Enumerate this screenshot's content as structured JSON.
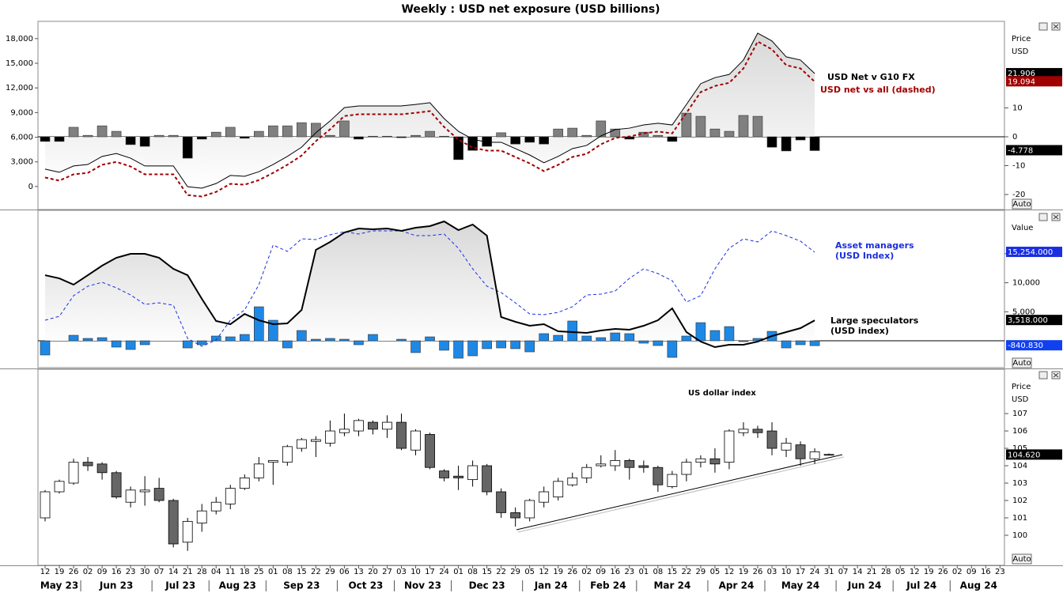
{
  "chart_data": [
    {
      "type": "combo",
      "title": "Weekly : USD net exposure (USD billions)",
      "axis_header": [
        "Price",
        "USD"
      ],
      "ylim": [
        -2800,
        20100
      ],
      "yticks": [
        0,
        {
          "value": 3000,
          "label": "3,000"
        },
        {
          "value": 6000,
          "label": "6,000"
        },
        {
          "value": 9000,
          "label": "9,000"
        },
        {
          "value": 12000,
          "label": "12,000"
        },
        {
          "value": 15000,
          "label": "15,000"
        },
        {
          "value": 18000,
          "label": "18,000"
        }
      ],
      "y2lim": [
        -25.2,
        40
      ],
      "y2ticks": [
        -20,
        -10,
        0,
        10
      ],
      "zero_line": true,
      "series": [
        {
          "type": "bar",
          "axis": "y2",
          "color": "#808080",
          "negative_color": "#000000",
          "tag_color": "#000000",
          "tag": -4.778,
          "values": [
            -1.6,
            -1.6,
            3.3,
            0.5,
            3.8,
            1.9,
            -2.7,
            -3.3,
            0.5,
            0.5,
            -7.4,
            -0.8,
            1.6,
            3.3,
            -0.5,
            1.9,
            3.8,
            3.8,
            4.9,
            4.7,
            0.5,
            5.5,
            -0.8,
            0.2,
            0.2,
            -0.3,
            0.5,
            1.9,
            0.2,
            -7.9,
            -4.7,
            -3.3,
            1.4,
            -2.5,
            -1.9,
            -2.5,
            2.7,
            3.0,
            0.5,
            5.5,
            2.7,
            -0.8,
            1.6,
            0.5,
            -1.6,
            8.2,
            7.1,
            2.7,
            1.9,
            7.4,
            7.1,
            -3.6,
            -4.9,
            -1.1,
            -4.778,
            null,
            null,
            null,
            null,
            null,
            null,
            null,
            null,
            null,
            null,
            null,
            null,
            null
          ]
        },
        {
          "type": "line",
          "axis": "y2",
          "name": "USD Net v G10 FX",
          "color": "#000000",
          "fill_area": true,
          "tag": 21.906,
          "values": [
            -11.2,
            -12.3,
            -10.1,
            -9.6,
            -6.8,
            -5.8,
            -7.4,
            -10.1,
            -10.1,
            -10.1,
            -17.3,
            -17.8,
            -16.2,
            -13.4,
            -13.7,
            -12.1,
            -9.6,
            -6.8,
            -3.6,
            1.4,
            5.5,
            10.1,
            10.7,
            10.7,
            10.7,
            10.7,
            11.2,
            11.8,
            6.3,
            1.9,
            -0.8,
            -1.9,
            -1.9,
            -4.1,
            -6.3,
            -9.0,
            -6.8,
            -4.1,
            -3.0,
            0.3,
            2.5,
            3.0,
            4.1,
            4.7,
            4.1,
            11.2,
            18.4,
            20.5,
            21.6,
            26.6,
            35.9,
            33.2,
            27.7,
            26.6,
            21.906,
            null,
            null,
            null,
            null,
            null,
            null,
            null,
            null,
            null,
            null,
            null,
            null,
            null
          ]
        },
        {
          "type": "line",
          "axis": "y2",
          "name": "USD net vs all (dashed)",
          "color": "#a00000",
          "dashed": true,
          "tag": 19.094,
          "values": [
            -14.1,
            -15.2,
            -13.0,
            -12.5,
            -9.7,
            -8.7,
            -10.3,
            -13.0,
            -13.0,
            -13.0,
            -20.2,
            -20.7,
            -19.1,
            -16.3,
            -16.6,
            -15.0,
            -12.5,
            -9.7,
            -6.5,
            -1.5,
            2.6,
            7.2,
            7.8,
            7.8,
            7.8,
            7.8,
            8.3,
            8.9,
            3.4,
            -1.0,
            -3.7,
            -4.8,
            -4.8,
            -7.0,
            -9.2,
            -11.9,
            -9.7,
            -7.0,
            -5.9,
            -2.6,
            -0.4,
            0.1,
            1.2,
            1.8,
            1.2,
            8.3,
            15.5,
            17.6,
            18.7,
            23.7,
            33.0,
            30.3,
            24.8,
            23.7,
            19.094,
            null,
            null,
            null,
            null,
            null,
            null,
            null,
            null,
            null,
            null,
            null,
            null,
            null
          ]
        }
      ]
    },
    {
      "type": "combo",
      "axis_header": [
        "Value"
      ],
      "y_side": "right",
      "ylim": [
        -4630,
        22480
      ],
      "yticks": [
        {
          "value": 5000,
          "label": "5,000"
        },
        {
          "value": 10000,
          "label": "10,000"
        },
        {
          "value": 15000,
          "label": "15,000"
        }
      ],
      "zero_line": true,
      "series": [
        {
          "type": "bar",
          "color": "#1e88e5",
          "tag_color": "#1040f0",
          "tag": {
            "value": -840.83,
            "label": "-840.830"
          },
          "values": [
            -2450,
            0,
            950,
            410,
            540,
            -1090,
            -1500,
            -680,
            0,
            0,
            -1230,
            -680,
            820,
            680,
            1090,
            5860,
            3540,
            -1230,
            1770,
            270,
            410,
            270,
            -680,
            1090,
            0,
            270,
            -2040,
            680,
            -1630,
            -3000,
            -2590,
            -1360,
            -1230,
            -1360,
            -1910,
            1230,
            950,
            3410,
            820,
            540,
            1360,
            1230,
            -410,
            -820,
            -2860,
            820,
            3130,
            1770,
            2450,
            -140,
            410,
            1630,
            -1230,
            -680,
            -840.83,
            null,
            null,
            null,
            null,
            null,
            null,
            null,
            null,
            null,
            null,
            null,
            null,
            null
          ]
        },
        {
          "type": "line",
          "name": "Asset managers",
          "name_note": "(USD Index)",
          "color": "#1a2ee0",
          "dashed": true,
          "tag": {
            "value": 15254,
            "label": "15,254.000"
          },
          "values": [
            3540,
            4220,
            7770,
            9400,
            10080,
            9130,
            7900,
            6270,
            6540,
            6130,
            410,
            -950,
            140,
            3540,
            5310,
            9670,
            16490,
            15400,
            17570,
            17440,
            18260,
            18800,
            18390,
            18940,
            18940,
            18940,
            18120,
            18120,
            18390,
            15940,
            12400,
            9400,
            8310,
            6540,
            4630,
            4500,
            4900,
            5860,
            7900,
            8040,
            8580,
            10760,
            12400,
            11580,
            10350,
            6680,
            7770,
            12400,
            15940,
            17570,
            17030,
            18940,
            18120,
            17170,
            15254,
            null,
            null,
            null,
            null,
            null,
            null,
            null,
            null,
            null,
            null,
            null,
            null,
            null
          ]
        },
        {
          "type": "line",
          "name": "Large speculators",
          "name_note": "(USD index)",
          "color": "#000000",
          "width": 2,
          "fill_area": true,
          "tag": {
            "value": 3518,
            "label": "3,518.000"
          },
          "values": [
            11300,
            10760,
            9670,
            11300,
            12940,
            14300,
            14990,
            14990,
            14300,
            12400,
            11300,
            7220,
            3410,
            2860,
            4630,
            3540,
            2860,
            3000,
            5310,
            15670,
            17030,
            18660,
            19350,
            19210,
            19350,
            18940,
            19480,
            19760,
            20570,
            19070,
            20030,
            18120,
            4090,
            3270,
            2590,
            2860,
            1630,
            1500,
            1360,
            1770,
            2040,
            1910,
            2590,
            3540,
            5590,
            1500,
            -140,
            -1090,
            -680,
            -680,
            -140,
            820,
            1500,
            2180,
            3518,
            null,
            null,
            null,
            null,
            null,
            null,
            null,
            null,
            null,
            null,
            null,
            null,
            null
          ]
        }
      ]
    },
    {
      "type": "candlestick",
      "title": "US dollar index",
      "axis_header": [
        "Price",
        "USD"
      ],
      "y_side": "right",
      "ylim": [
        98.27,
        109.55
      ],
      "yticks": [
        100,
        101,
        102,
        103,
        104,
        105,
        106,
        107
      ],
      "up_color": "#ffffff",
      "down_color": "#666666",
      "tag": {
        "value": 104.62,
        "label": "104.620"
      },
      "categories": [
        "12",
        "19",
        "26",
        "02",
        "09",
        "16",
        "23",
        "30",
        "07",
        "14",
        "21",
        "28",
        "04",
        "11",
        "18",
        "25",
        "01",
        "08",
        "15",
        "22",
        "29",
        "06",
        "13",
        "20",
        "27",
        "03",
        "10",
        "17",
        "24",
        "01",
        "08",
        "15",
        "22",
        "29",
        "05",
        "12",
        "19",
        "26",
        "02",
        "09",
        "16",
        "23",
        "01",
        "08",
        "15",
        "22",
        "29",
        "05",
        "12",
        "19",
        "26",
        "03",
        "10",
        "17",
        "24",
        "31",
        "07",
        "14",
        "21",
        "28",
        "05",
        "12",
        "19",
        "26",
        "02",
        "09",
        "16",
        "23"
      ],
      "month_labels": [
        "May 23",
        "Jun 23",
        "Jul 23",
        "Aug 23",
        "Sep 23",
        "Oct 23",
        "Nov 23",
        "Dec 23",
        "Jan 24",
        "Feb 24",
        "Mar 24",
        "Apr 24",
        "May 24",
        "Jun 24",
        "Jul 24",
        "Aug 24"
      ],
      "open": [
        101.0,
        102.5,
        103.0,
        104.2,
        104.1,
        103.6,
        101.9,
        102.5,
        102.7,
        102.0,
        99.6,
        100.7,
        101.4,
        101.8,
        102.7,
        103.3,
        104.2,
        104.2,
        105.0,
        105.4,
        105.3,
        105.9,
        106.0,
        106.5,
        106.1,
        106.5,
        104.9,
        105.8,
        103.7,
        103.4,
        103.2,
        104.0,
        102.5,
        101.3,
        101.0,
        101.9,
        102.2,
        102.9,
        103.3,
        104.0,
        104.0,
        104.3,
        104.0,
        103.9,
        102.8,
        103.5,
        104.2,
        104.4,
        104.2,
        105.9,
        106.1,
        106.0,
        104.9,
        105.2,
        104.4,
        104.65,
        null,
        null,
        null,
        null,
        null,
        null,
        null,
        null,
        null,
        null,
        null,
        null
      ],
      "high": [
        102.6,
        103.2,
        104.4,
        104.5,
        104.2,
        103.7,
        102.8,
        103.4,
        103.3,
        102.1,
        101.0,
        101.8,
        102.2,
        102.9,
        103.5,
        104.5,
        104.3,
        105.2,
        105.6,
        105.7,
        106.6,
        107.0,
        106.7,
        106.6,
        106.9,
        107.0,
        106.1,
        105.9,
        103.8,
        104.0,
        104.3,
        104.1,
        102.7,
        101.6,
        102.1,
        102.8,
        103.3,
        103.6,
        104.1,
        104.6,
        104.9,
        104.4,
        104.3,
        104.0,
        103.7,
        104.4,
        104.6,
        105.0,
        106.1,
        106.5,
        106.3,
        106.5,
        105.6,
        105.4,
        105.0,
        104.7,
        null,
        null,
        null,
        null,
        null,
        null,
        null,
        null,
        null,
        null,
        null,
        null
      ],
      "low": [
        100.8,
        102.4,
        102.9,
        103.7,
        103.2,
        102.1,
        101.6,
        101.7,
        101.9,
        99.3,
        99.1,
        100.2,
        101.2,
        101.5,
        102.6,
        103.1,
        102.9,
        104.0,
        104.8,
        104.5,
        105.1,
        105.7,
        105.7,
        105.8,
        105.6,
        104.9,
        104.6,
        103.8,
        103.1,
        102.6,
        102.8,
        102.3,
        101.0,
        100.5,
        100.8,
        101.6,
        102.0,
        102.8,
        103.0,
        103.9,
        103.7,
        103.2,
        103.6,
        102.5,
        102.7,
        103.1,
        103.9,
        103.6,
        103.8,
        105.7,
        105.6,
        104.6,
        104.5,
        104.0,
        104.1,
        104.6,
        null,
        null,
        null,
        null,
        null,
        null,
        null,
        null,
        null,
        null,
        null,
        null
      ],
      "close": [
        102.5,
        103.1,
        104.2,
        104.0,
        103.6,
        102.2,
        102.6,
        102.6,
        102.0,
        99.5,
        100.8,
        101.4,
        101.9,
        102.7,
        103.3,
        104.1,
        104.3,
        105.1,
        105.5,
        105.5,
        106.0,
        106.1,
        106.6,
        106.1,
        106.5,
        105.0,
        106.0,
        103.9,
        103.3,
        103.3,
        104.0,
        102.5,
        101.3,
        101.0,
        102.0,
        102.5,
        103.1,
        103.3,
        103.9,
        104.1,
        104.3,
        103.9,
        103.9,
        102.9,
        103.5,
        104.2,
        104.4,
        104.1,
        106.0,
        106.1,
        105.9,
        105.0,
        105.3,
        104.4,
        104.8,
        104.62,
        null,
        null,
        null,
        null,
        null,
        null,
        null,
        null,
        null,
        null,
        null,
        null
      ]
    }
  ]
}
